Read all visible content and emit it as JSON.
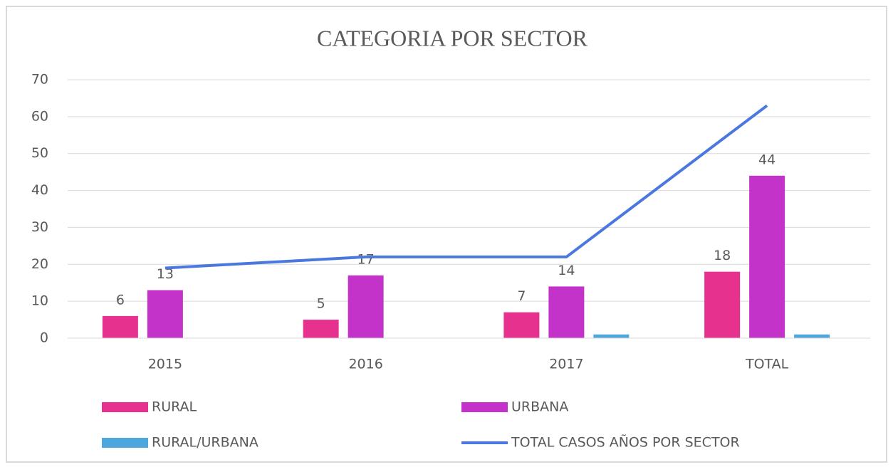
{
  "chart_data": {
    "type": "bar",
    "title": "CATEGORIA POR SECTOR",
    "categories": [
      "2015",
      "2016",
      "2017",
      "TOTAL"
    ],
    "series": [
      {
        "name": "RURAL",
        "color": "#e6318f",
        "values": [
          6,
          5,
          7,
          18
        ],
        "data_labels": true
      },
      {
        "name": "URBANA",
        "color": "#c433c9",
        "values": [
          13,
          17,
          14,
          44
        ],
        "data_labels": true
      },
      {
        "name": "RURAL/URBANA",
        "color": "#4ea7dc",
        "values": [
          0,
          0,
          1,
          1
        ],
        "data_labels": false
      },
      {
        "name": "TOTAL CASOS AÑOS POR SECTOR",
        "color": "#4a78e0",
        "type": "line",
        "values": [
          19,
          22,
          22,
          63
        ],
        "data_labels": false
      }
    ],
    "ylim": [
      0,
      70
    ],
    "yticks": [
      0,
      10,
      20,
      30,
      40,
      50,
      60,
      70
    ],
    "grid": true,
    "legend": "bottom"
  }
}
